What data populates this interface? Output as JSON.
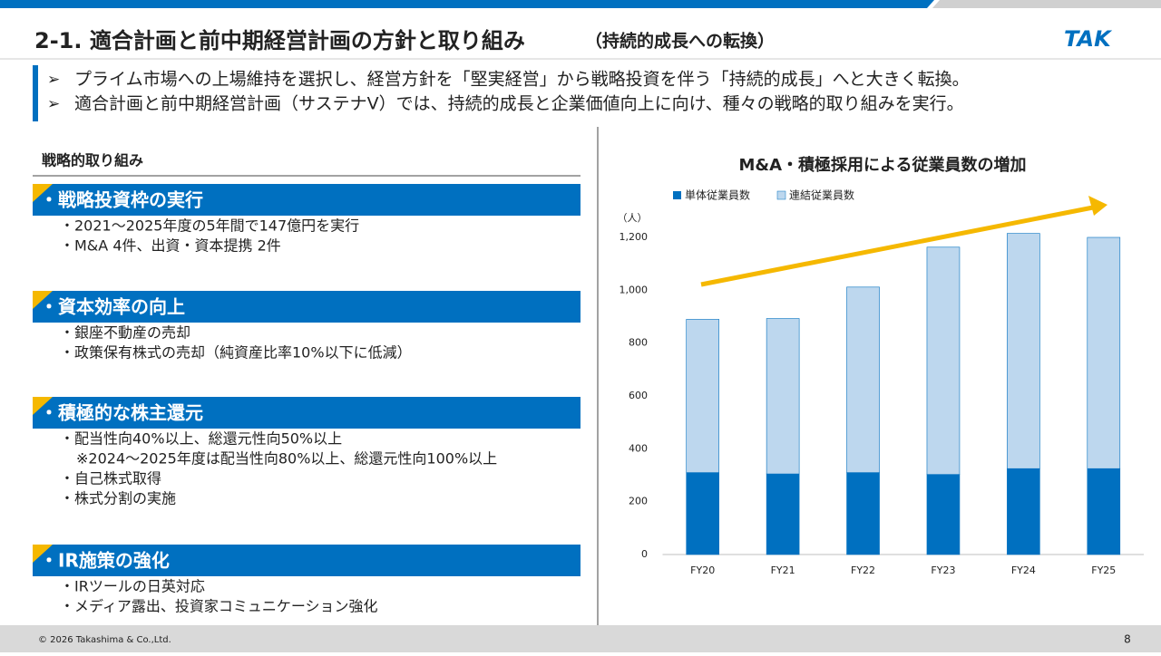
{
  "header": {
    "title": "2-1. 適合計画と前中期経営計画の方針と取り組み",
    "subtitle": "（持続的成長への転換）",
    "logo": "TAK"
  },
  "bullets": [
    "プライム市場への上場維持を選択し、経営方針を「堅実経営」から戦略投資を伴う「持続的成長」へと大きく転換。",
    "適合計画と前中期経営計画（サステナV）では、持続的成長と企業価値向上に向け、種々の戦略的取り組みを実行。"
  ],
  "left_heading": "戦略的取り組み",
  "sections": [
    {
      "title": "・戦略投資枠の実行",
      "items": [
        "・2021〜2025年度の5年間で147億円を実行",
        "・M&A 4件、出資・資本提携 2件"
      ]
    },
    {
      "title": "・資本効率の向上",
      "items": [
        "・銀座不動産の売却",
        "・政策保有株式の売却（純資産比率10%以下に低減）"
      ]
    },
    {
      "title": "・積極的な株主還元",
      "items": [
        "・配当性向40%以上、総還元性向50%以上",
        "※2024〜2025年度は配当性向80%以上、総還元性向100%以上",
        "・自己株式取得",
        "・株式分割の実施"
      ]
    },
    {
      "title": "・IR施策の強化",
      "items": [
        "・IRツールの日英対応",
        "・メディア露出、投資家コミュニケーション強化"
      ]
    }
  ],
  "chart_data": {
    "type": "stacked_bar",
    "title": "M&A・積極採用による従業員数の増加",
    "y_unit": "（人）",
    "categories": [
      "FY20",
      "FY21",
      "FY22",
      "FY23",
      "FY24",
      "FY25"
    ],
    "series": [
      {
        "name": "単体従業員数",
        "color": "#0070c0",
        "values": [
          310,
          305,
          310,
          303,
          325,
          325
        ]
      },
      {
        "name": "連結従業員数",
        "color": "#bdd7ee",
        "values": [
          580,
          588,
          702,
          860,
          890,
          875
        ]
      }
    ],
    "ylim": [
      0,
      1260
    ],
    "yticks": [
      0,
      200,
      400,
      600,
      800,
      {
        "value": 1000,
        "label": "1,000"
      },
      {
        "value": 1200,
        "label": "1,200"
      }
    ]
  },
  "footer": {
    "copyright": "© 2026  Takashima & Co.,Ltd.",
    "page": "8"
  }
}
